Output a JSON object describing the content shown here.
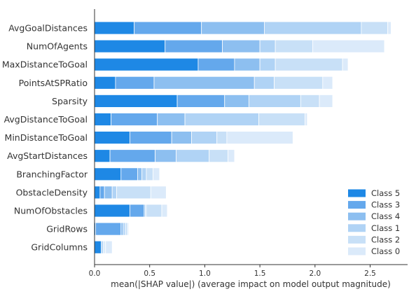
{
  "chart_data": {
    "type": "bar",
    "orientation": "horizontal",
    "stacked": true,
    "title": "",
    "xlabel": "mean(|SHAP value|) (average impact on model output magnitude)",
    "ylabel": "",
    "xlim": [
      0,
      2.85
    ],
    "xticks": [
      0.0,
      0.5,
      1.0,
      1.5,
      2.0,
      2.5
    ],
    "xtick_labels": [
      "0.0",
      "0.5",
      "1.0",
      "1.5",
      "2.0",
      "2.5"
    ],
    "grid": false,
    "legend_position": "lower-right",
    "categories": [
      "AvgGoalDistances",
      "NumOfAgents",
      "MaxDistanceToGoal",
      "PointsAtSPRatio",
      "Sparsity",
      "AvgDistanceToGoal",
      "MinDistanceToGoal",
      "AvgStartDistances",
      "BranchingFactor",
      "ObstacleDensity",
      "NumOfObstacles",
      "GridRows",
      "GridColumns"
    ],
    "series": [
      {
        "name": "Class 5",
        "color": "#1e88e5",
        "values": [
          0.36,
          0.64,
          0.94,
          0.19,
          0.75,
          0.15,
          0.32,
          0.14,
          0.24,
          0.05,
          0.32,
          0.01,
          0.06
        ]
      },
      {
        "name": "Class 3",
        "color": "#64a8ec",
        "values": [
          0.61,
          0.52,
          0.33,
          0.35,
          0.43,
          0.42,
          0.38,
          0.41,
          0.15,
          0.04,
          0.13,
          0.23,
          0.01
        ]
      },
      {
        "name": "Class 4",
        "color": "#8dbff0",
        "values": [
          0.57,
          0.34,
          0.23,
          0.91,
          0.22,
          0.25,
          0.18,
          0.19,
          0.04,
          0.07,
          0.01,
          0.02,
          0.01
        ]
      },
      {
        "name": "Class 1",
        "color": "#b0d3f5",
        "values": [
          0.88,
          0.14,
          0.14,
          0.18,
          0.47,
          0.67,
          0.23,
          0.3,
          0.04,
          0.04,
          0.01,
          0.02,
          0.01
        ]
      },
      {
        "name": "Class 2",
        "color": "#c8e0f7",
        "values": [
          0.24,
          0.34,
          0.61,
          0.44,
          0.17,
          0.42,
          0.09,
          0.17,
          0.06,
          0.31,
          0.14,
          0.02,
          0.01
        ]
      },
      {
        "name": "Class 0",
        "color": "#dbeafa",
        "values": [
          0.03,
          0.65,
          0.05,
          0.09,
          0.12,
          0.02,
          0.6,
          0.06,
          0.06,
          0.14,
          0.05,
          0.01,
          0.06
        ]
      }
    ]
  }
}
